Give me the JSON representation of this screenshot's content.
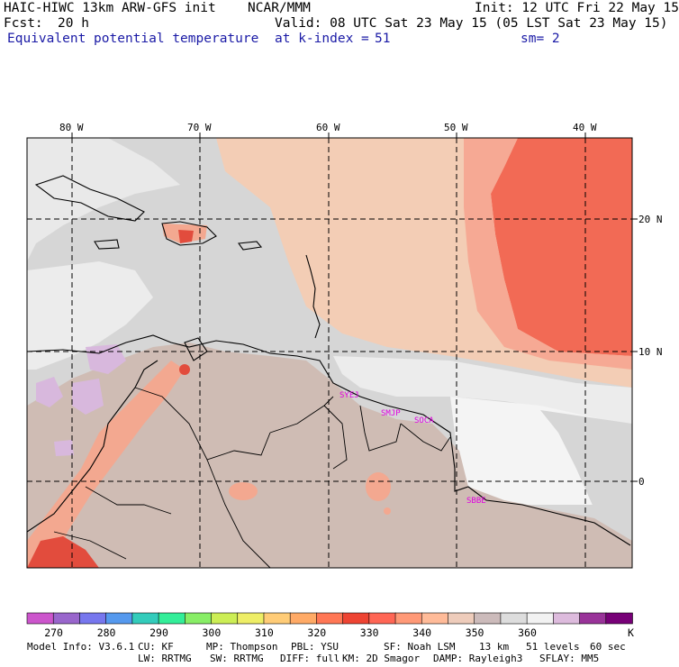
{
  "header": {
    "model": "HAIC-HIWC 13km ARW-GFS init",
    "org": "NCAR/MMM",
    "init": "Init: 12 UTC Fri 22 May 15",
    "fcst_label": "Fcst:",
    "fcst_value": "20 h",
    "valid": "Valid: 08 UTC Sat 23 May 15 (05 LST Sat 23 May 15)",
    "field": "Equivalent potential temperature",
    "level": "at k-index =",
    "level_value": "51",
    "smooth": "sm= 2"
  },
  "map": {
    "lon_labels": [
      "80 W",
      "70 W",
      "60 W",
      "50 W",
      "40 W"
    ],
    "lat_labels": [
      "20 N",
      "10 N",
      "0"
    ],
    "stations": [
      "SYEJ",
      "SMJP",
      "SOCA",
      "SBBE"
    ]
  },
  "colorbar": {
    "colors": [
      "#cc55cc",
      "#9966cc",
      "#7777ee",
      "#5599ee",
      "#33ccbb",
      "#33ee99",
      "#88ee66",
      "#ccee55",
      "#eeee66",
      "#ffcc77",
      "#ffaa66",
      "#ff7755",
      "#ee4433",
      "#ff6655",
      "#ff9977",
      "#ffbb99",
      "#eeccbb",
      "#ccbbbb",
      "#dddddd",
      "#f2f2f2",
      "#ddbbdd",
      "#993399",
      "#770077"
    ],
    "ticks": [
      "270",
      "280",
      "290",
      "300",
      "310",
      "320",
      "330",
      "340",
      "350",
      "360"
    ],
    "unit": "K"
  },
  "footer": {
    "line1": [
      "Model Info: V3.6.1",
      "CU: KF",
      "MP: Thompson",
      "PBL: YSU",
      "SF: Noah LSM",
      "13 km",
      "51 levels",
      "60 sec"
    ],
    "line2": [
      "LW: RRTMG",
      "SW: RRTMG",
      "DIFF: full",
      "KM: 2D Smagor",
      "DAMP: Rayleigh3",
      "SFLAY: MM5"
    ]
  }
}
